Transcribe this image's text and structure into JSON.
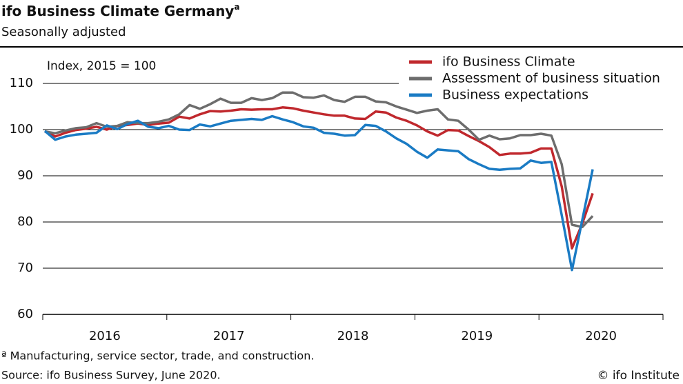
{
  "chart_data": {
    "type": "line",
    "title": "ifo Business Climate Germany",
    "title_note": "a",
    "subtitle": "Seasonally adjusted",
    "y_label": "Index, 2015 = 100",
    "footnote": "ª Manufacturing, service sector, trade, and construction.",
    "source": "Source: ifo Business Survey, June 2020.",
    "copyright": "© ifo Institute",
    "categories": [
      null,
      null,
      null,
      null,
      null,
      null,
      "2016",
      null,
      null,
      null,
      null,
      null,
      null,
      null,
      null,
      null,
      null,
      null,
      "2017",
      null,
      null,
      null,
      null,
      null,
      null,
      null,
      null,
      null,
      null,
      null,
      "2018",
      null,
      null,
      null,
      null,
      null,
      null,
      null,
      null,
      null,
      null,
      null,
      "2019",
      null,
      null,
      null,
      null,
      null,
      null,
      null,
      null,
      null,
      null,
      null,
      "2020",
      null,
      null,
      null,
      null,
      null
    ],
    "series": [
      {
        "name": "ifo Business Climate",
        "color": "#c0282d",
        "values": [
          99.6,
          98.5,
          99.3,
          99.9,
          100.2,
          100.6,
          100.0,
          100.8,
          101.0,
          101.3,
          101.0,
          101.3,
          101.5,
          102.8,
          102.4,
          103.3,
          104.0,
          103.9,
          104.1,
          104.4,
          104.3,
          104.4,
          104.4,
          104.8,
          104.6,
          104.1,
          103.7,
          103.3,
          103.0,
          103.0,
          102.4,
          102.3,
          103.9,
          103.7,
          102.6,
          101.9,
          100.9,
          99.6,
          98.7,
          99.9,
          99.8,
          98.6,
          97.5,
          96.2,
          94.5,
          94.8,
          94.8,
          95.0,
          95.9,
          95.9,
          87.7,
          74.3,
          79.7,
          86.2,
          null,
          null,
          null,
          null,
          null,
          null
        ]
      },
      {
        "name": "Assessment of business situation",
        "color": "#6d6d6d",
        "values": [
          99.6,
          99.2,
          99.8,
          100.3,
          100.5,
          101.4,
          100.6,
          100.8,
          101.6,
          101.4,
          101.4,
          101.7,
          102.2,
          103.3,
          105.3,
          104.5,
          105.5,
          106.7,
          105.8,
          105.8,
          106.8,
          106.4,
          106.8,
          108.0,
          108.0,
          107.0,
          106.9,
          107.4,
          106.4,
          106.0,
          107.1,
          107.1,
          106.1,
          105.9,
          105.0,
          104.3,
          103.6,
          104.1,
          104.4,
          102.2,
          101.9,
          100.0,
          97.8,
          98.7,
          97.9,
          98.1,
          98.8,
          98.8,
          99.1,
          98.7,
          92.5,
          79.4,
          78.9,
          81.3,
          null,
          null,
          null,
          null,
          null,
          null
        ]
      },
      {
        "name": "Business expectations",
        "color": "#1a7bc4",
        "values": [
          99.7,
          97.8,
          98.5,
          98.9,
          99.1,
          99.3,
          100.9,
          100.1,
          101.2,
          101.9,
          100.6,
          100.3,
          100.8,
          100.0,
          99.9,
          101.1,
          100.7,
          101.3,
          101.9,
          102.1,
          102.3,
          102.1,
          102.9,
          102.2,
          101.6,
          100.7,
          100.4,
          99.3,
          99.1,
          98.7,
          98.8,
          101.0,
          100.8,
          99.6,
          98.1,
          96.9,
          95.2,
          93.9,
          95.7,
          95.5,
          95.3,
          93.6,
          92.5,
          91.5,
          91.3,
          91.5,
          91.6,
          93.3,
          92.8,
          93.0,
          81.5,
          69.6,
          80.5,
          91.4,
          null,
          null,
          null,
          null,
          null,
          null
        ]
      }
    ],
    "ylim": [
      60,
      117.9
    ],
    "yticks": [
      60,
      70,
      80,
      90,
      100,
      110
    ],
    "grid": true,
    "legend": "top-right"
  }
}
